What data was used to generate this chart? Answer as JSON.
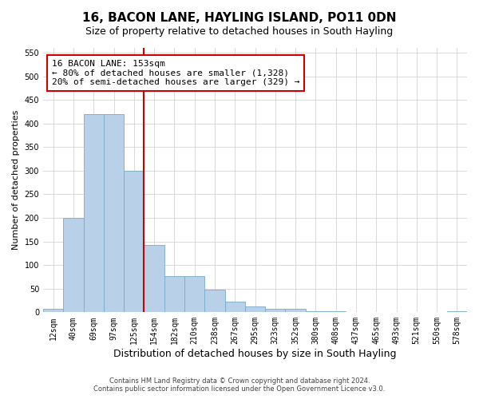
{
  "title": "16, BACON LANE, HAYLING ISLAND, PO11 0DN",
  "subtitle": "Size of property relative to detached houses in South Hayling",
  "xlabel": "Distribution of detached houses by size in South Hayling",
  "ylabel": "Number of detached properties",
  "categories": [
    "12sqm",
    "40sqm",
    "69sqm",
    "97sqm",
    "125sqm",
    "154sqm",
    "182sqm",
    "210sqm",
    "238sqm",
    "267sqm",
    "295sqm",
    "323sqm",
    "352sqm",
    "380sqm",
    "408sqm",
    "437sqm",
    "465sqm",
    "493sqm",
    "521sqm",
    "550sqm",
    "578sqm"
  ],
  "values": [
    8,
    200,
    420,
    420,
    300,
    143,
    77,
    77,
    48,
    23,
    12,
    8,
    8,
    3,
    2,
    0,
    0,
    0,
    0,
    0,
    3
  ],
  "bar_color": "#b8d0e8",
  "bar_edge_color": "#7aaac8",
  "vline_color": "#cc0000",
  "annotation_line1": "16 BACON LANE: 153sqm",
  "annotation_line2": "← 80% of detached houses are smaller (1,328)",
  "annotation_line3": "20% of semi-detached houses are larger (329) →",
  "annotation_box_color": "#cc0000",
  "ylim": [
    0,
    560
  ],
  "yticks": [
    0,
    50,
    100,
    150,
    200,
    250,
    300,
    350,
    400,
    450,
    500,
    550
  ],
  "footnote1": "Contains HM Land Registry data © Crown copyright and database right 2024.",
  "footnote2": "Contains public sector information licensed under the Open Government Licence v3.0.",
  "background_color": "#ffffff",
  "grid_color": "#cccccc",
  "title_fontsize": 11,
  "subtitle_fontsize": 9,
  "annotation_fontsize": 8,
  "tick_fontsize": 7,
  "ylabel_fontsize": 8,
  "xlabel_fontsize": 9
}
